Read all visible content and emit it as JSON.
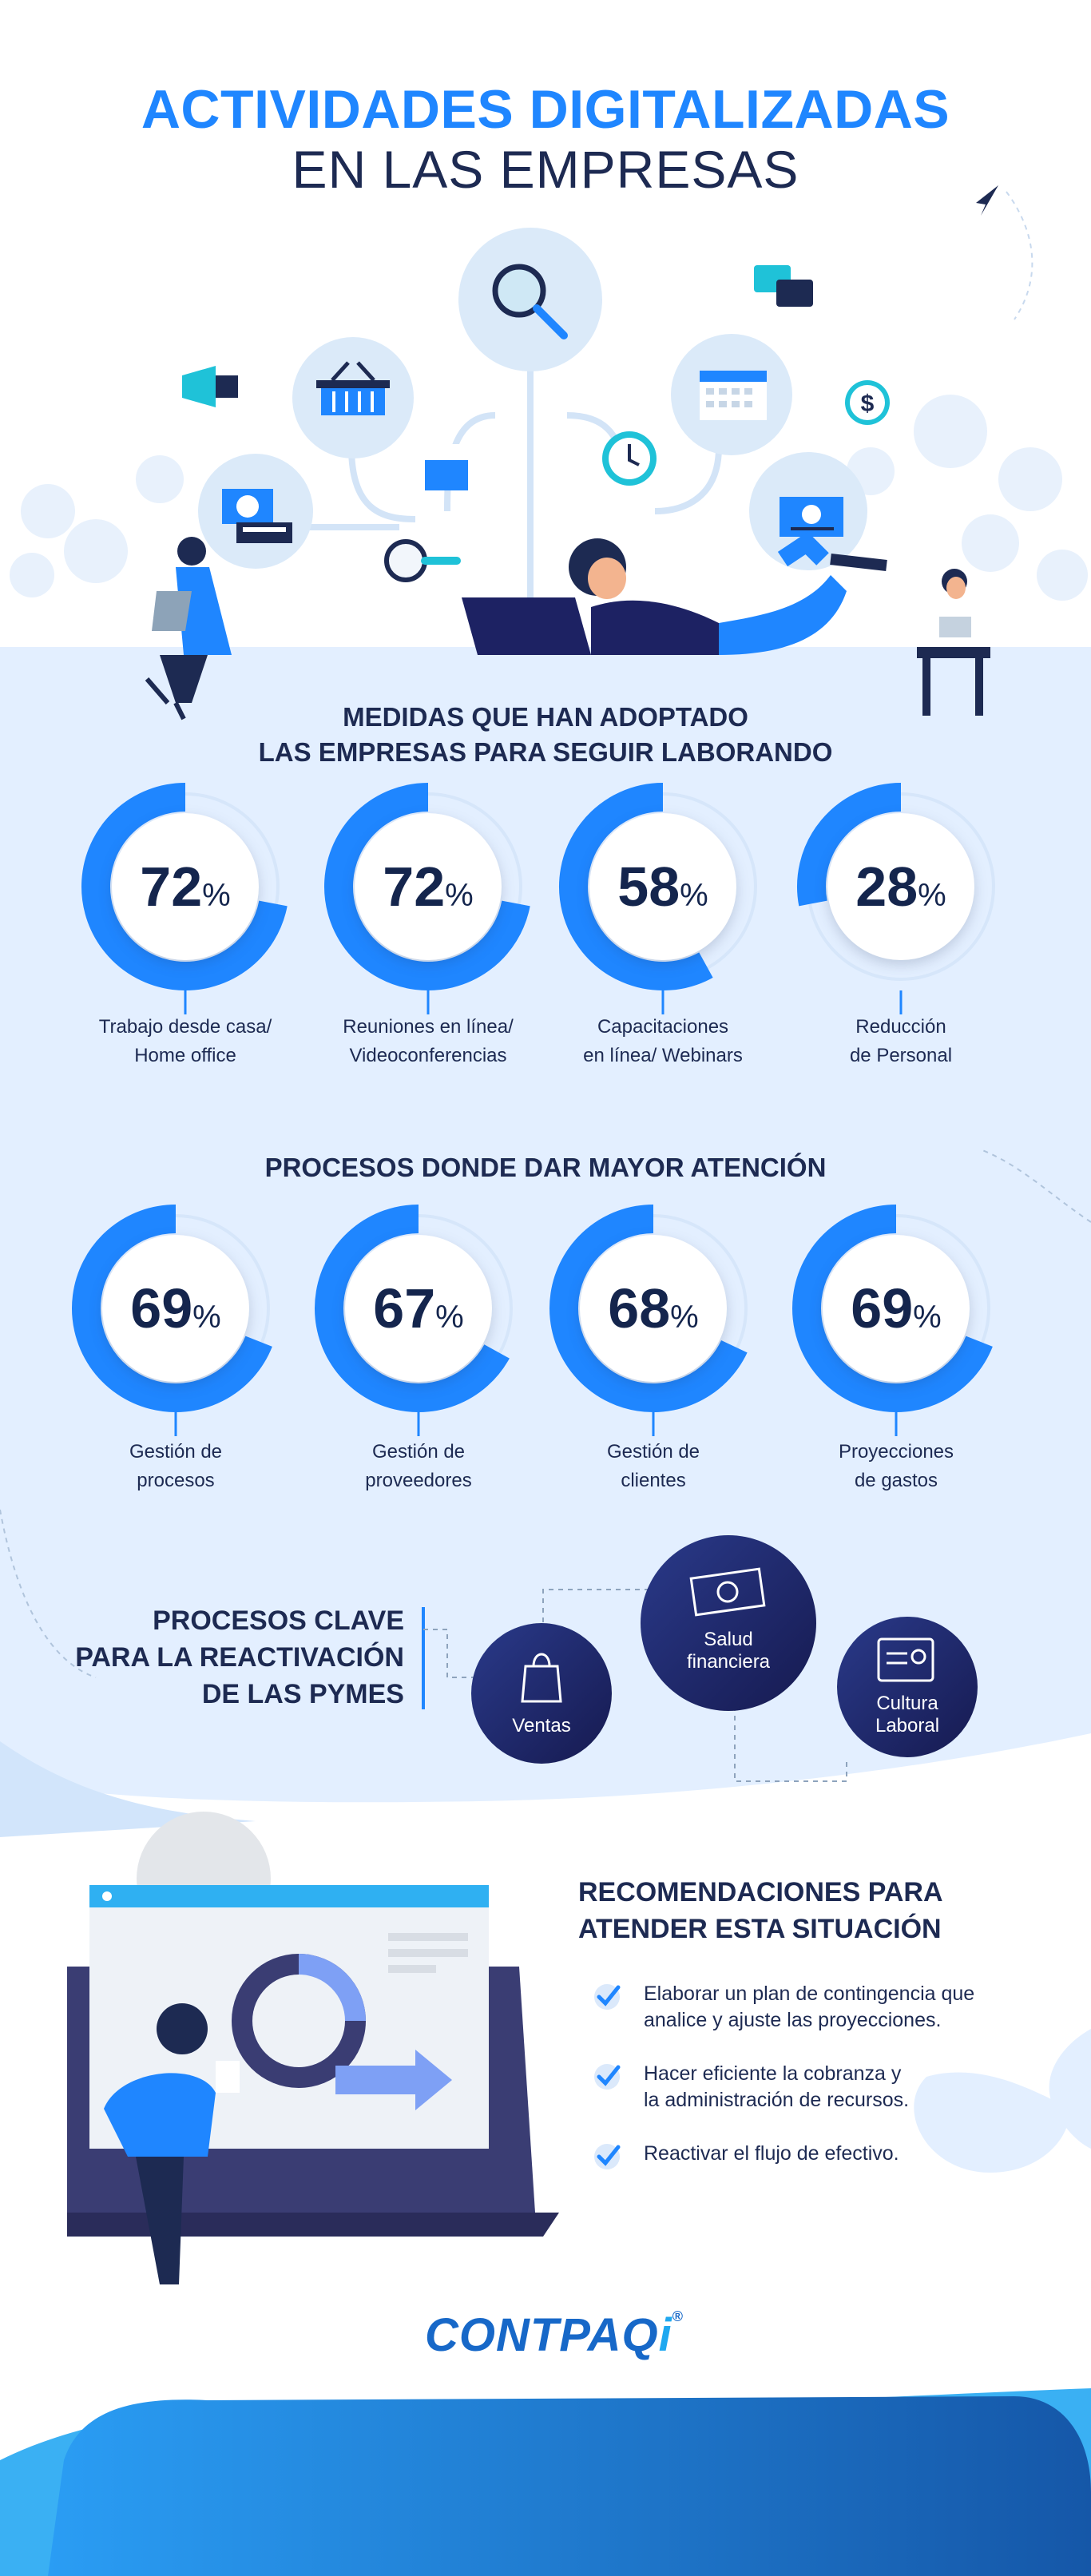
{
  "title": {
    "line1": "ACTIVIDADES DIGITALIZADAS",
    "line2": "EN LAS EMPRESAS"
  },
  "medidas": {
    "heading_line1": "MEDIDAS QUE HAN ADOPTADO",
    "heading_line2": "LAS EMPRESAS PARA SEGUIR LABORANDO",
    "items": [
      {
        "value": 72,
        "number": "72",
        "line1": "Trabajo desde casa/",
        "line2": "Home office"
      },
      {
        "value": 72,
        "number": "72",
        "line1": "Reuniones en línea/",
        "line2": "Videoconferencias"
      },
      {
        "value": 58,
        "number": "58",
        "line1": "Capacitaciones",
        "line2": "en línea/ Webinars"
      },
      {
        "value": 28,
        "number": "28",
        "line1": "Reducción",
        "line2": "de Personal"
      }
    ]
  },
  "procesos": {
    "heading": "PROCESOS DONDE DAR MAYOR ATENCIÓN",
    "items": [
      {
        "value": 69,
        "number": "69",
        "line1": "Gestión de",
        "line2": "procesos"
      },
      {
        "value": 67,
        "number": "67",
        "line1": "Gestión de",
        "line2": "proveedores"
      },
      {
        "value": 68,
        "number": "68",
        "line1": "Gestión de",
        "line2": "clientes"
      },
      {
        "value": 69,
        "number": "69",
        "line1": "Proyecciones",
        "line2": "de gastos"
      }
    ]
  },
  "percent_sign": "%",
  "pymes": {
    "title_line1": "PROCESOS CLAVE",
    "title_line2": "PARA LA REACTIVACIÓN",
    "title_line3": "DE LAS PYMES",
    "ventas": "Ventas",
    "salud_line1": "Salud",
    "salud_line2": "financiera",
    "cultura_line1": "Cultura",
    "cultura_line2": "Laboral"
  },
  "recomendaciones": {
    "title_line1": "RECOMENDACIONES PARA",
    "title_line2": "ATENDER ESTA SITUACIÓN",
    "items": [
      {
        "line1": "Elaborar un plan de contingencia que",
        "line2": "analice y ajuste las proyecciones."
      },
      {
        "line1": "Hacer eficiente la cobranza y",
        "line2": "la administración de recursos."
      },
      {
        "line1": "Reactivar el flujo de efectivo.",
        "line2": ""
      }
    ]
  },
  "logo": {
    "text": "CONTPAQ",
    "mark": "i",
    "sup": "®"
  },
  "colors": {
    "accent": "#1f86ff",
    "navy": "#1d2a52",
    "light_bg": "#e3efff",
    "bubble": "#1d2263",
    "footer_dark": "#1656a6"
  }
}
